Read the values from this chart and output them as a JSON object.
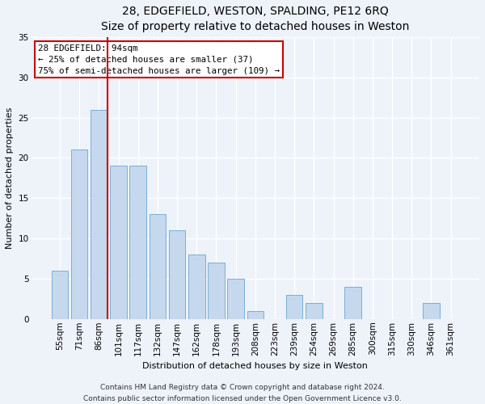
{
  "title": "28, EDGEFIELD, WESTON, SPALDING, PE12 6RQ",
  "subtitle": "Size of property relative to detached houses in Weston",
  "xlabel": "Distribution of detached houses by size in Weston",
  "ylabel": "Number of detached properties",
  "categories": [
    "55sqm",
    "71sqm",
    "86sqm",
    "101sqm",
    "117sqm",
    "132sqm",
    "147sqm",
    "162sqm",
    "178sqm",
    "193sqm",
    "208sqm",
    "223sqm",
    "239sqm",
    "254sqm",
    "269sqm",
    "285sqm",
    "300sqm",
    "315sqm",
    "330sqm",
    "346sqm",
    "361sqm"
  ],
  "values": [
    6,
    21,
    26,
    19,
    19,
    13,
    11,
    8,
    7,
    5,
    1,
    0,
    3,
    2,
    0,
    4,
    0,
    0,
    0,
    2,
    0
  ],
  "bar_color": "#c5d8ee",
  "bar_edge_color": "#7bafd4",
  "vline_bar_index": 2,
  "vline_color": "#cc0000",
  "annotation_line1": "28 EDGEFIELD: 94sqm",
  "annotation_line2": "← 25% of detached houses are smaller (37)",
  "annotation_line3": "75% of semi-detached houses are larger (109) →",
  "annotation_box_color": "#ffffff",
  "annotation_box_edge_color": "#cc0000",
  "ylim": [
    0,
    35
  ],
  "yticks": [
    0,
    5,
    10,
    15,
    20,
    25,
    30,
    35
  ],
  "footer_line1": "Contains HM Land Registry data © Crown copyright and database right 2024.",
  "footer_line2": "Contains public sector information licensed under the Open Government Licence v3.0.",
  "background_color": "#eef2f9",
  "grid_color": "#ffffff",
  "title_fontsize": 10,
  "subtitle_fontsize": 9.5,
  "axis_label_fontsize": 8,
  "tick_fontsize": 7.5,
  "annotation_fontsize": 7.8,
  "footer_fontsize": 6.5
}
